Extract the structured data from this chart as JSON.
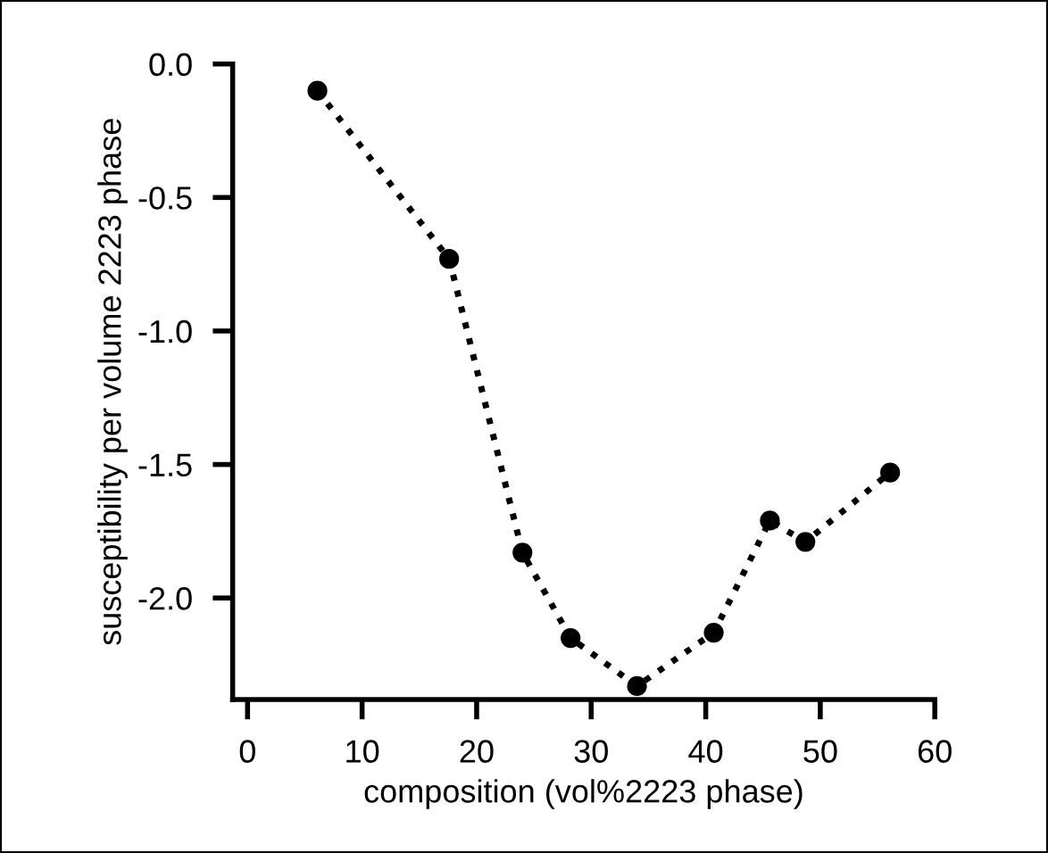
{
  "chart_data": {
    "type": "line",
    "xlabel": "composition (vol%2223 phase)",
    "ylabel": "susceptibility per volume 2223 phase",
    "x": [
      6.1,
      17.6,
      24.0,
      28.2,
      34.0,
      40.7,
      45.6,
      48.7,
      56.1
    ],
    "series": [
      {
        "color": "#000000",
        "values": [
          -0.1,
          -0.73,
          -1.83,
          -2.15,
          -2.33,
          -2.13,
          -1.71,
          -1.79,
          -1.53
        ]
      }
    ],
    "xlim": [
      -1.3,
      60
    ],
    "ylim": [
      -2.38,
      0.0
    ],
    "xticks": [
      0,
      10,
      20,
      30,
      40,
      50,
      60
    ],
    "yticks": [
      {
        "value": 0,
        "label": "0.0"
      },
      {
        "value": -0.5,
        "label": "-0.5"
      },
      {
        "value": -1.0,
        "label": "-1.0"
      },
      {
        "value": -1.5,
        "label": "-1.5"
      },
      {
        "value": -2.0,
        "label": "-2.0"
      }
    ],
    "marker": "circle",
    "line_style": "dotted",
    "grid": false,
    "legend": false
  }
}
